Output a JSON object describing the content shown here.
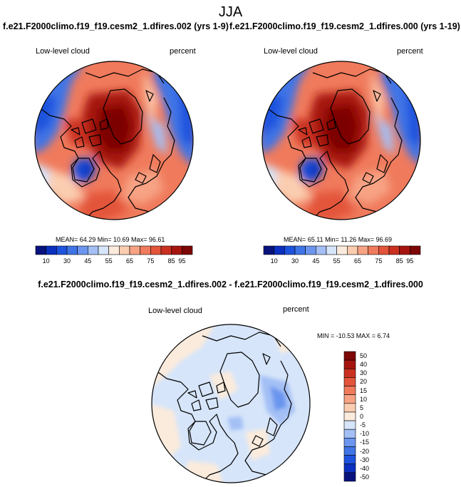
{
  "title": "JJA",
  "panels": [
    {
      "case_title": "f.e21.F2000climo.f19_f19.cesm2_1.dfires.002 (yrs 1-9)",
      "variable": "Low-level cloud",
      "units": "percent",
      "stats": "MEAN= 64.29  Min= 10.69  Max= 96.61"
    },
    {
      "case_title": "f.e21.F2000climo.f19_f19.cesm2_1.dfires.000 (yrs 1-19)",
      "variable": "Low-level cloud",
      "units": "percent",
      "stats": "MEAN= 65.11  Min= 11.26  Max= 96.69"
    }
  ],
  "difference": {
    "title": "f.e21.F2000climo.f19_f19.cesm2_1.dfires.002 - f.e21.F2000climo.f19_f19.cesm2_1.dfires.000",
    "variable": "Low-level cloud",
    "units": "percent",
    "stats": "MIN = -10.53 MAX =   6.74"
  },
  "colorbar_abs": {
    "colors": [
      "#08127d",
      "#0b2fbe",
      "#1d53de",
      "#3f74e6",
      "#6b95ee",
      "#a3bff5",
      "#d6e5fa",
      "#fbebdc",
      "#fbcdb0",
      "#f7a384",
      "#f07a5c",
      "#e3543a",
      "#ca3020",
      "#a61410",
      "#7d0606"
    ],
    "labels": [
      "10",
      "30",
      "45",
      "55",
      "65",
      "75",
      "85",
      "95"
    ]
  },
  "colorbar_diff": {
    "colors": [
      "#7d0606",
      "#a61410",
      "#ca3020",
      "#e3543a",
      "#f07a5c",
      "#f7a384",
      "#fbcdb0",
      "#fbebdc",
      "#d6e5fa",
      "#a3bff5",
      "#6b95ee",
      "#3f74e6",
      "#1d53de",
      "#0b2fbe",
      "#08127d"
    ],
    "labels": [
      "50",
      "40",
      "30",
      "20",
      "15",
      "10",
      "5",
      "0",
      "-5",
      "-10",
      "-15",
      "-20",
      "-30",
      "-40",
      "-50"
    ]
  }
}
